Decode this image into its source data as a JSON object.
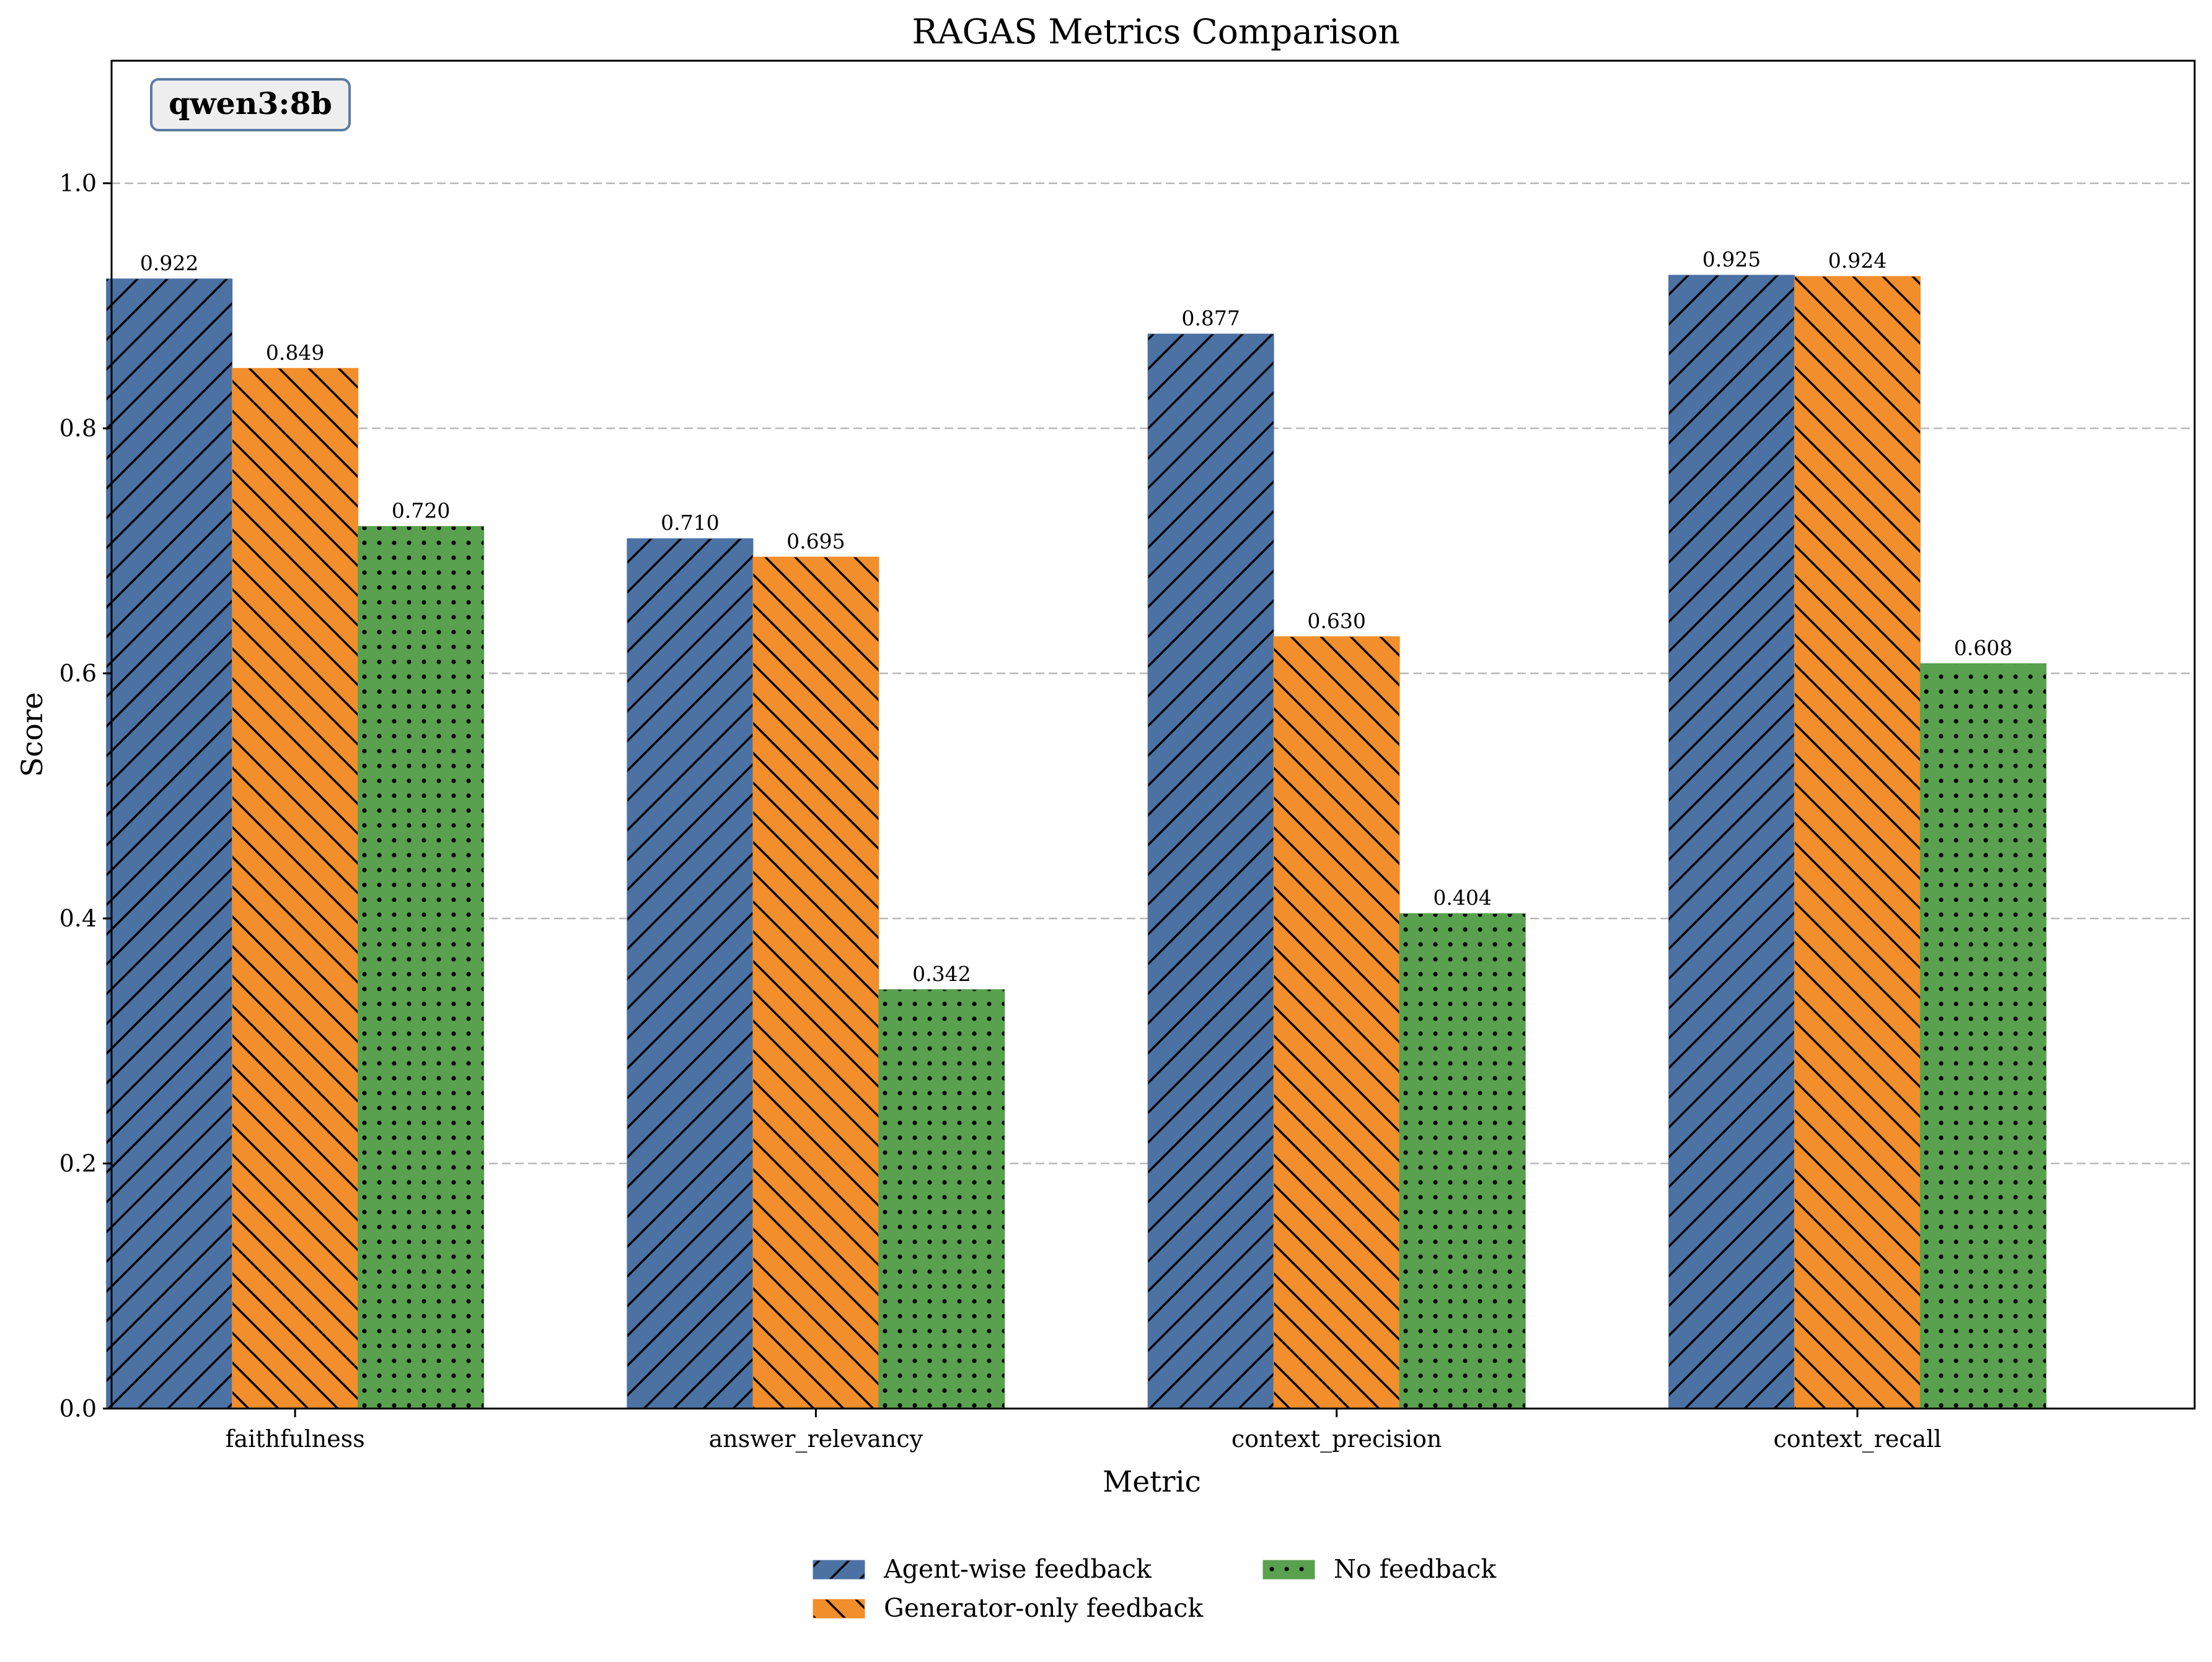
{
  "chart_data": {
    "type": "bar",
    "title": "RAGAS Metrics Comparison",
    "xlabel": "Metric",
    "ylabel": "Score",
    "ylim": [
      0,
      1.1
    ],
    "yticks": [
      "0.0",
      "0.2",
      "0.4",
      "0.6",
      "0.8",
      "1.0"
    ],
    "grid": "horizontal dashed",
    "legend_position": "bottom-center",
    "badge": "qwen3:8b",
    "categories": [
      "faithfulness",
      "answer_relevancy",
      "context_precision",
      "context_recall"
    ],
    "series": [
      {
        "name": "Agent-wise feedback",
        "color": "#4c72a4",
        "hatch": "forward-diagonal",
        "values": [
          0.922,
          0.71,
          0.877,
          0.925
        ],
        "labels": [
          "0.922",
          "0.710",
          "0.877",
          "0.925"
        ]
      },
      {
        "name": "Generator-only feedback",
        "color": "#f28e2b",
        "hatch": "back-diagonal",
        "values": [
          0.849,
          0.695,
          0.63,
          0.924
        ],
        "labels": [
          "0.849",
          "0.695",
          "0.630",
          "0.924"
        ]
      },
      {
        "name": "No feedback",
        "color": "#59a14f",
        "hatch": "dots",
        "values": [
          0.72,
          0.342,
          0.404,
          0.608
        ],
        "labels": [
          "0.720",
          "0.342",
          "0.404",
          "0.608"
        ]
      }
    ]
  }
}
